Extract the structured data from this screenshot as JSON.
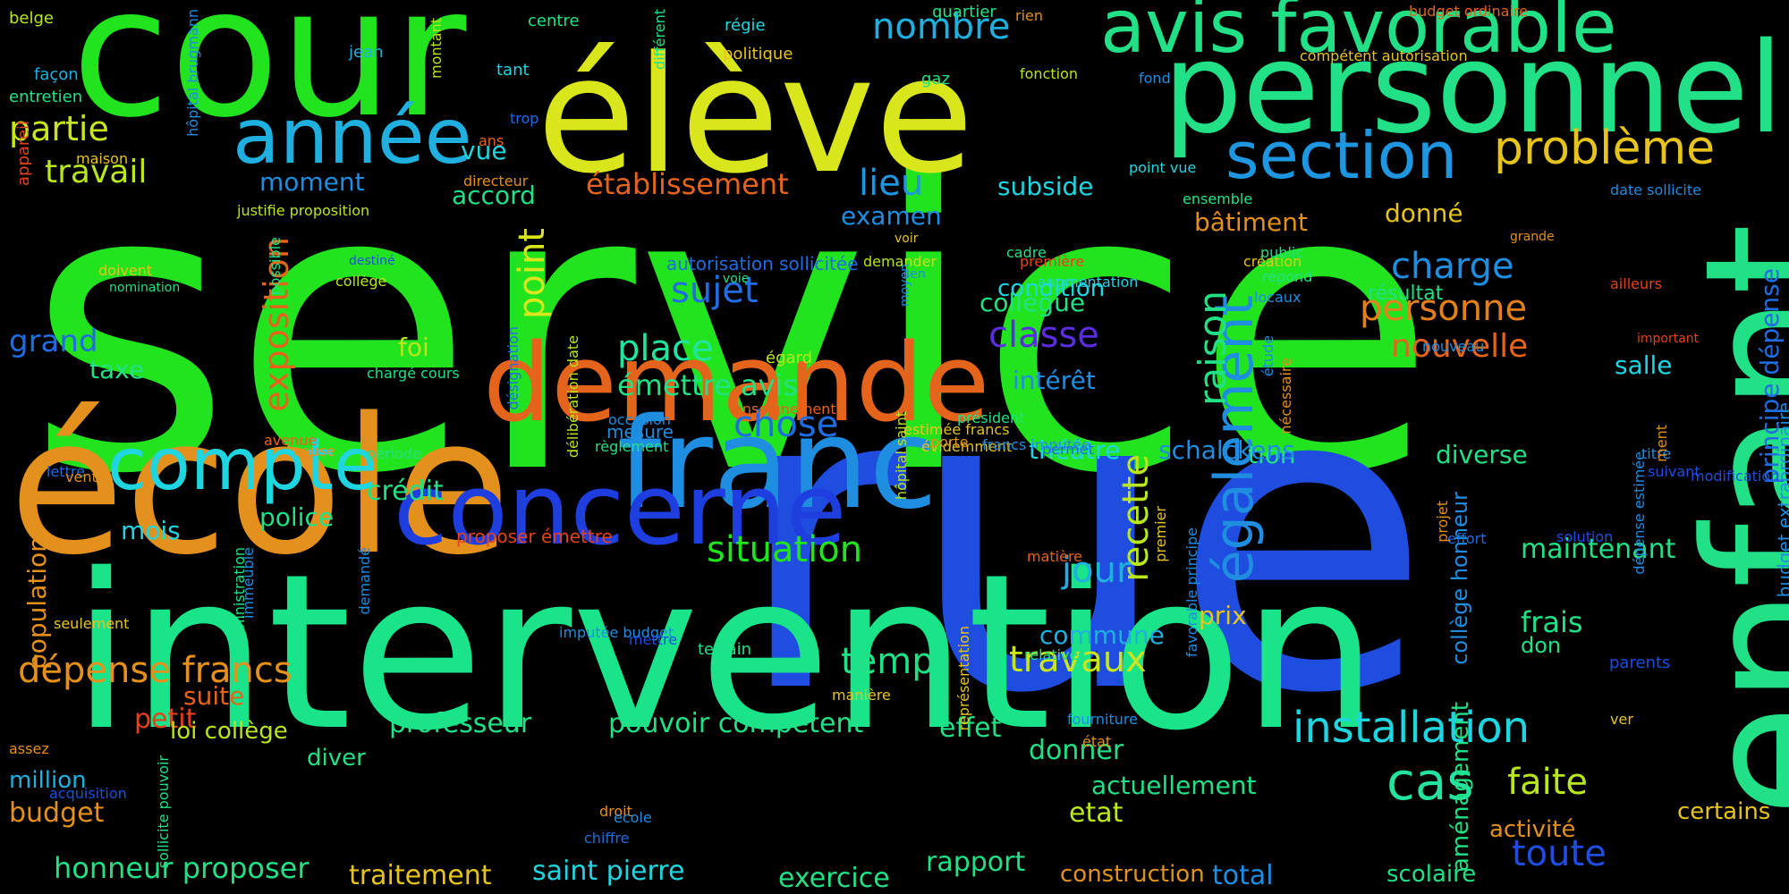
{
  "words": [
    {
      "text": "service",
      "color": "#22e41e"
    },
    {
      "text": "rue",
      "color": "#1f4de0"
    },
    {
      "text": "intervention",
      "color": "#19e48a"
    },
    {
      "text": "élève",
      "color": "#d9e61c"
    },
    {
      "text": "cour",
      "color": "#22e41e"
    },
    {
      "text": "école",
      "color": "#e4901c"
    },
    {
      "text": "personnel",
      "color": "#22e085"
    },
    {
      "text": "enfant",
      "color": "#22e085"
    },
    {
      "text": "demande",
      "color": "#e4641c"
    },
    {
      "text": "franc",
      "color": "#1f8de0"
    },
    {
      "text": "concerne",
      "color": "#1f3ee0"
    },
    {
      "text": "avis favorable",
      "color": "#22e085"
    },
    {
      "text": "année",
      "color": "#1fb0e0"
    },
    {
      "text": "compte",
      "color": "#1fd6e0"
    },
    {
      "text": "section",
      "color": "#1f96e0"
    },
    {
      "text": "problème",
      "color": "#e6c41c"
    },
    {
      "text": "également",
      "color": "#1f8de0"
    },
    {
      "text": "exposition",
      "color": "#e4641c"
    },
    {
      "text": "installation",
      "color": "#1fd6e0"
    },
    {
      "text": "cas",
      "color": "#22e4a0"
    },
    {
      "text": "dépense francs",
      "color": "#e4901c"
    },
    {
      "text": "point",
      "color": "#d9e61c"
    },
    {
      "text": "nombre",
      "color": "#1fb0e0"
    },
    {
      "text": "travail",
      "color": "#b9e61c"
    },
    {
      "text": "partie",
      "color": "#c9e61c"
    },
    {
      "text": "sujet",
      "color": "#1f6de0"
    },
    {
      "text": "place",
      "color": "#22e4a0"
    },
    {
      "text": "chose",
      "color": "#1f6de0"
    },
    {
      "text": "classe",
      "color": "#5a2ee0"
    },
    {
      "text": "charge",
      "color": "#1f8de0"
    },
    {
      "text": "personne",
      "color": "#e4801c"
    },
    {
      "text": "situation",
      "color": "#22e41e"
    },
    {
      "text": "travaux",
      "color": "#c9e61c"
    },
    {
      "text": "raison",
      "color": "#22e085"
    },
    {
      "text": "recette",
      "color": "#b9e61c"
    },
    {
      "text": "toute",
      "color": "#1f4de0"
    },
    {
      "text": "faite",
      "color": "#b9e61c"
    },
    {
      "text": "jour",
      "color": "#1fb0e0"
    },
    {
      "text": "temp",
      "color": "#22e085"
    },
    {
      "text": "nouvelle",
      "color": "#e4641c"
    },
    {
      "text": "établissement",
      "color": "#e4641c"
    },
    {
      "text": "lieu",
      "color": "#1f96e0"
    },
    {
      "text": "grand",
      "color": "#1f6de0"
    },
    {
      "text": "émettre avis",
      "color": "#22e085"
    },
    {
      "text": "pouvoir compétent",
      "color": "#22e085"
    },
    {
      "text": "honneur proposer",
      "color": "#22e085"
    },
    {
      "text": "professeur",
      "color": "#22e085"
    },
    {
      "text": "saint pierre",
      "color": "#1fd6e0"
    },
    {
      "text": "traitement",
      "color": "#e6c41c"
    },
    {
      "text": "exercice",
      "color": "#22e085"
    },
    {
      "text": "rapport",
      "color": "#22e085"
    },
    {
      "text": "construction",
      "color": "#e4901c"
    },
    {
      "text": "total",
      "color": "#1f8de0"
    },
    {
      "text": "scolaire",
      "color": "#22e085"
    },
    {
      "text": "activité",
      "color": "#e4901c"
    },
    {
      "text": "certains",
      "color": "#e6c41c"
    },
    {
      "text": "actuellement",
      "color": "#22e085"
    },
    {
      "text": "etat",
      "color": "#b9e61c"
    },
    {
      "text": "effet",
      "color": "#22e085"
    },
    {
      "text": "donner",
      "color": "#22e085"
    },
    {
      "text": "commune",
      "color": "#1fb0e0"
    },
    {
      "text": "prix",
      "color": "#e6c41c"
    },
    {
      "text": "frais",
      "color": "#22e085"
    },
    {
      "text": "don",
      "color": "#22e085"
    },
    {
      "text": "maintenant",
      "color": "#22e085"
    },
    {
      "text": "tion",
      "color": "#22e085"
    },
    {
      "text": "diverse",
      "color": "#22e085"
    },
    {
      "text": "schalckens",
      "color": "#1f8de0"
    },
    {
      "text": "théâtre",
      "color": "#1fd6e0"
    },
    {
      "text": "intérêt",
      "color": "#1f8de0"
    },
    {
      "text": "condition",
      "color": "#1fd6e0"
    },
    {
      "text": "collègue",
      "color": "#22e085"
    },
    {
      "text": "subside",
      "color": "#1fd6e0"
    },
    {
      "text": "examen",
      "color": "#1f8de0"
    },
    {
      "text": "bâtiment",
      "color": "#e4901c"
    },
    {
      "text": "donné",
      "color": "#e6c41c"
    },
    {
      "text": "salle",
      "color": "#1fd6e0"
    },
    {
      "text": "résultat",
      "color": "#22e085"
    },
    {
      "text": "foi",
      "color": "#b9e61c"
    },
    {
      "text": "vue",
      "color": "#1fd6e0"
    },
    {
      "text": "accord",
      "color": "#22e085"
    },
    {
      "text": "moment",
      "color": "#1f8de0"
    },
    {
      "text": "taxe",
      "color": "#22e085"
    },
    {
      "text": "crédit",
      "color": "#22e085"
    },
    {
      "text": "police",
      "color": "#22e085"
    },
    {
      "text": "mois",
      "color": "#1fd6e0"
    },
    {
      "text": "suite",
      "color": "#e4641c"
    },
    {
      "text": "petit",
      "color": "#e4421c"
    },
    {
      "text": "loi collège",
      "color": "#b9e61c"
    },
    {
      "text": "diver",
      "color": "#22e085"
    },
    {
      "text": "million",
      "color": "#1fb0e0"
    },
    {
      "text": "budget",
      "color": "#e4901c"
    },
    {
      "text": "proposer émettre",
      "color": "#e4421c"
    },
    {
      "text": "mesure",
      "color": "#1f8de0"
    },
    {
      "text": "population",
      "color": "#e4901c"
    },
    {
      "text": "principe dépense",
      "color": "#1f6de0"
    },
    {
      "text": "budget extraordinaire",
      "color": "#1f8de0"
    },
    {
      "text": "aménagement",
      "color": "#22e085"
    },
    {
      "text": "collège honneur",
      "color": "#1f8de0"
    },
    {
      "text": "belge",
      "color": "#b9e61c"
    },
    {
      "text": "façon",
      "color": "#1fb0e0"
    },
    {
      "text": "entretien",
      "color": "#22e085"
    },
    {
      "text": "jean",
      "color": "#1fb0e0"
    },
    {
      "text": "montant",
      "color": "#b9e61c"
    },
    {
      "text": "hôpital brugmann",
      "color": "#1f8de0"
    },
    {
      "text": "centre",
      "color": "#22e085"
    },
    {
      "text": "tant",
      "color": "#1fd6e0"
    },
    {
      "text": "différent",
      "color": "#22e085"
    },
    {
      "text": "régie",
      "color": "#1fd6e0"
    },
    {
      "text": "politique",
      "color": "#e6c41c"
    },
    {
      "text": "quartier",
      "color": "#22e085"
    },
    {
      "text": "fonction",
      "color": "#b9e61c"
    },
    {
      "text": "gaz",
      "color": "#22e085"
    },
    {
      "text": "rien",
      "color": "#e4901c"
    },
    {
      "text": "budget ordinaire",
      "color": "#e4641c"
    },
    {
      "text": "compétent autorisation",
      "color": "#e6c41c"
    },
    {
      "text": "fond",
      "color": "#1f8de0"
    },
    {
      "text": "trop",
      "color": "#1f6de0"
    },
    {
      "text": "ans",
      "color": "#e4641c"
    },
    {
      "text": "maison",
      "color": "#e6c41c"
    },
    {
      "text": "directeur",
      "color": "#e4901c"
    },
    {
      "text": "point vue",
      "color": "#1fd6e0"
    },
    {
      "text": "ensemble",
      "color": "#22e085"
    },
    {
      "text": "date sollicite",
      "color": "#1f8de0"
    },
    {
      "text": "justifie proposition",
      "color": "#b9e61c"
    },
    {
      "text": "appareil",
      "color": "#e4421c"
    },
    {
      "text": "doivent",
      "color": "#e6c41c"
    },
    {
      "text": "nomination",
      "color": "#22e085"
    },
    {
      "text": "destiné",
      "color": "#1f4de0"
    },
    {
      "text": "collège",
      "color": "#b9e61c"
    },
    {
      "text": "possible",
      "color": "#22e085"
    },
    {
      "text": "désignation",
      "color": "#1f6de0"
    },
    {
      "text": "délibération date",
      "color": "#b9e61c"
    },
    {
      "text": "autorisation sollicitée",
      "color": "#1f6de0"
    },
    {
      "text": "voie",
      "color": "#22e085"
    },
    {
      "text": "demander",
      "color": "#b9e61c"
    },
    {
      "text": "voir",
      "color": "#e6c41c"
    },
    {
      "text": "première",
      "color": "#e4421c"
    },
    {
      "text": "cadre",
      "color": "#22e085"
    },
    {
      "text": "augmentation",
      "color": "#1fd6e0"
    },
    {
      "text": "création",
      "color": "#e6c41c"
    },
    {
      "text": "public",
      "color": "#22e085"
    },
    {
      "text": "répond",
      "color": "#22e085"
    },
    {
      "text": "locaux",
      "color": "#1f8de0"
    },
    {
      "text": "grande",
      "color": "#e4901c"
    },
    {
      "text": "ailleurs",
      "color": "#e4421c"
    },
    {
      "text": "sen",
      "color": "#1f8de0"
    },
    {
      "text": "moyen",
      "color": "#1f8de0"
    },
    {
      "text": "égard",
      "color": "#b9e61c"
    },
    {
      "text": "chargé cours",
      "color": "#22e085"
    },
    {
      "text": "important",
      "color": "#e4421c"
    },
    {
      "text": "nouveau",
      "color": "#1f8de0"
    },
    {
      "text": "étude",
      "color": "#1f8de0"
    },
    {
      "text": "nécessaire",
      "color": "#e4901c"
    },
    {
      "text": "occasion",
      "color": "#1f8de0"
    },
    {
      "text": "enseignement",
      "color": "#e4641c"
    },
    {
      "text": "président",
      "color": "#22e085"
    },
    {
      "text": "évidemment",
      "color": "#e6c41c"
    },
    {
      "text": "estimée francs",
      "color": "#e6c41c"
    },
    {
      "text": "porte",
      "color": "#e4901c"
    },
    {
      "text": "francs imputée",
      "color": "#1f8de0"
    },
    {
      "text": "permet",
      "color": "#1f6de0"
    },
    {
      "text": "règlement",
      "color": "#22e085"
    },
    {
      "text": "avenue",
      "color": "#e4641c"
    },
    {
      "text": "période",
      "color": "#22e085"
    },
    {
      "text": "hôpital saint",
      "color": "#b9e61c"
    },
    {
      "text": "lettre",
      "color": "#1f6de0"
    },
    {
      "text": "vente",
      "color": "#e4901c"
    },
    {
      "text": "cause",
      "color": "#e4901c"
    },
    {
      "text": "titre",
      "color": "#1f8de0"
    },
    {
      "text": "modification",
      "color": "#1f4de0"
    },
    {
      "text": "suivant",
      "color": "#1f4de0"
    },
    {
      "text": "ment",
      "color": "#e4901c"
    },
    {
      "text": "matière",
      "color": "#e4641c"
    },
    {
      "text": "effort",
      "color": "#1f6de0"
    },
    {
      "text": "projet",
      "color": "#e4901c"
    },
    {
      "text": "dépense estimée",
      "color": "#1f8de0"
    },
    {
      "text": "solution",
      "color": "#1f4de0"
    },
    {
      "text": "favorable principe",
      "color": "#1f8de0"
    },
    {
      "text": "premier",
      "color": "#e6c41c"
    },
    {
      "text": "immeuble",
      "color": "#1f8de0"
    },
    {
      "text": "demandé",
      "color": "#1f8de0"
    },
    {
      "text": "administration",
      "color": "#22e085"
    },
    {
      "text": "seulement",
      "color": "#e6c41c"
    },
    {
      "text": "imputée budget",
      "color": "#1f8de0"
    },
    {
      "text": "mettre",
      "color": "#1f4de0"
    },
    {
      "text": "terrain",
      "color": "#22e085"
    },
    {
      "text": "relative",
      "color": "#22e085"
    },
    {
      "text": "manière",
      "color": "#e6c41c"
    },
    {
      "text": "représentation",
      "color": "#e6c41c"
    },
    {
      "text": "parents",
      "color": "#1f4de0"
    },
    {
      "text": "ver",
      "color": "#e6c41c"
    },
    {
      "text": "fourniture",
      "color": "#1f8de0"
    },
    {
      "text": "état",
      "color": "#e4901c"
    },
    {
      "text": "assez",
      "color": "#e4901c"
    },
    {
      "text": "acquisition",
      "color": "#1f4de0"
    },
    {
      "text": "sollicite pouvoir",
      "color": "#22e085"
    },
    {
      "text": "droit",
      "color": "#e4901c"
    },
    {
      "text": "ecole",
      "color": "#1f8de0"
    },
    {
      "text": "chiffre",
      "color": "#1f6de0"
    }
  ]
}
